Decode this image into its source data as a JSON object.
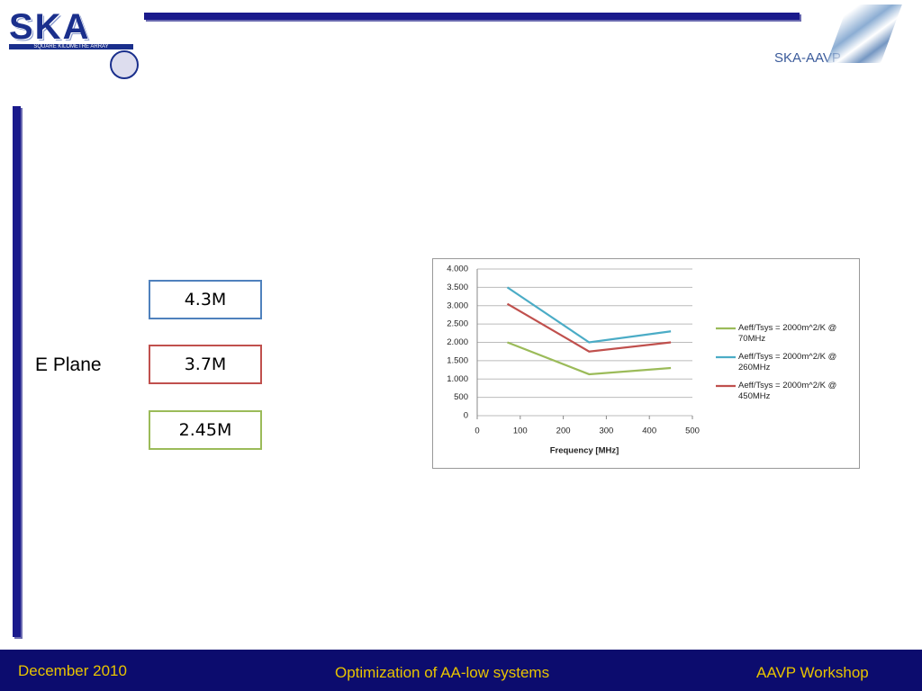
{
  "header": {
    "logo_left": "SKA",
    "logo_left_sub": "SQUARE KILOMETRE ARRAY",
    "logo_right": "SKA-AAVP"
  },
  "label": "E Plane",
  "boxes": [
    "4.3M",
    "3.7M",
    "2.45M"
  ],
  "chart_data": {
    "type": "line",
    "x_label": "Frequency [MHz]",
    "xlim": [
      0,
      500
    ],
    "xticks": [
      0,
      100,
      200,
      300,
      400,
      500
    ],
    "ylim": [
      0,
      4000
    ],
    "yticks": [
      0,
      500,
      {
        "value": 1000,
        "label": "1.000"
      },
      {
        "value": 1500,
        "label": "1.500"
      },
      {
        "value": 2000,
        "label": "2.000"
      },
      {
        "value": 2500,
        "label": "2.500"
      },
      {
        "value": 3000,
        "label": "3.000"
      },
      {
        "value": 3500,
        "label": "3.500"
      },
      {
        "value": 4000,
        "label": "4.000"
      }
    ],
    "grid": true,
    "x": [
      70,
      260,
      450
    ],
    "series": [
      {
        "name": "Aeff/Tsys = 2000m^2/K @ 70MHz",
        "color": "#9bbb59",
        "values": [
          2000,
          1130,
          1300
        ]
      },
      {
        "name": "Aeff/Tsys = 2000m^2/K @ 260MHz",
        "color": "#4bacc6",
        "values": [
          3500,
          2000,
          2300
        ]
      },
      {
        "name": "Aeff/Tsys = 2000m^2/K @ 450MHz",
        "color": "#c0504d",
        "values": [
          3050,
          1750,
          2000
        ]
      }
    ]
  },
  "footer": {
    "left": "December 2010",
    "center": "Optimization of AA-low systems",
    "right": "AAVP Workshop"
  }
}
